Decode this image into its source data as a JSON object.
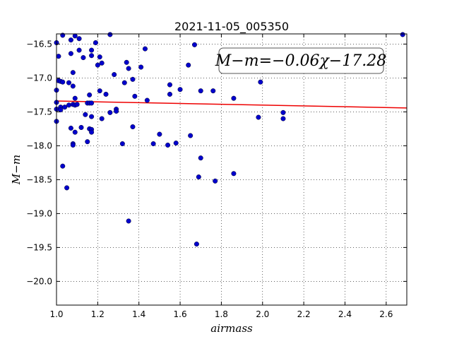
{
  "chart_data": {
    "type": "scatter",
    "title": "2021-11-05_005350",
    "xlabel": "airmass",
    "ylabel": "M−m",
    "xlim": [
      1.0,
      2.7
    ],
    "ylim": [
      -20.35,
      -16.35
    ],
    "y_inverted": true,
    "grid": true,
    "xticks": [
      1.0,
      1.2,
      1.4,
      1.6,
      1.8,
      2.0,
      2.2,
      2.4,
      2.6
    ],
    "xtick_labels": [
      "1.0",
      "1.2",
      "1.4",
      "1.6",
      "1.8",
      "2.0",
      "2.2",
      "2.4",
      "2.6"
    ],
    "yticks": [
      -16.5,
      -17.0,
      -17.5,
      -18.0,
      -18.5,
      -19.0,
      -19.5,
      -20.0
    ],
    "ytick_labels": [
      "−16.5",
      "−17.0",
      "−17.5",
      "−18.0",
      "−18.5",
      "−19.0",
      "−19.5",
      "−20.0"
    ],
    "annotation": "M−m=−0.06χ−17.28",
    "point_color": "#0000cc",
    "fit_color": "#ee0000",
    "series": [
      {
        "kind": "points",
        "x": [
          1.0,
          1.0,
          1.0,
          1.0,
          1.0,
          1.01,
          1.01,
          1.02,
          1.02,
          1.02,
          1.03,
          1.03,
          1.03,
          1.04,
          1.05,
          1.06,
          1.06,
          1.07,
          1.07,
          1.07,
          1.08,
          1.08,
          1.08,
          1.08,
          1.08,
          1.09,
          1.09,
          1.09,
          1.09,
          1.1,
          1.11,
          1.11,
          1.12,
          1.13,
          1.14,
          1.15,
          1.15,
          1.16,
          1.16,
          1.16,
          1.17,
          1.17,
          1.17,
          1.17,
          1.17,
          1.17,
          1.19,
          1.2,
          1.21,
          1.21,
          1.22,
          1.22,
          1.24,
          1.26,
          1.26,
          1.28,
          1.29,
          1.29,
          1.32,
          1.33,
          1.34,
          1.35,
          1.35,
          1.37,
          1.37,
          1.38,
          1.41,
          1.43,
          1.44,
          1.47,
          1.5,
          1.54,
          1.55,
          1.55,
          1.58,
          1.6,
          1.64,
          1.65,
          1.67,
          1.68,
          1.69,
          1.7,
          1.7,
          1.76,
          1.77,
          1.86,
          1.86,
          1.98,
          1.99,
          2.1,
          2.1,
          2.68
        ],
        "y": [
          -16.48,
          -17.18,
          -17.36,
          -17.46,
          -17.64,
          -16.68,
          -17.04,
          -17.05,
          -17.43,
          -17.47,
          -16.37,
          -17.06,
          -18.3,
          -17.43,
          -18.62,
          -17.07,
          -17.4,
          -17.74,
          -16.44,
          -16.64,
          -16.92,
          -17.12,
          -17.39,
          -17.97,
          -17.99,
          -16.38,
          -17.3,
          -17.4,
          -17.8,
          -17.39,
          -16.42,
          -16.59,
          -17.73,
          -16.7,
          -17.54,
          -17.37,
          -17.94,
          -17.75,
          -17.25,
          -17.37,
          -16.59,
          -16.67,
          -17.57,
          -17.76,
          -17.8,
          -17.37,
          -16.48,
          -16.81,
          -16.69,
          -17.19,
          -16.78,
          -17.6,
          -17.24,
          -17.51,
          -16.36,
          -16.95,
          -17.46,
          -17.49,
          -17.97,
          -17.07,
          -16.77,
          -16.86,
          -19.11,
          -17.72,
          -17.02,
          -17.27,
          -16.84,
          -16.57,
          -17.33,
          -17.97,
          -17.83,
          -17.99,
          -17.1,
          -17.24,
          -17.96,
          -17.17,
          -16.81,
          -17.85,
          -16.51,
          -19.45,
          -18.46,
          -18.18,
          -17.19,
          -17.19,
          -18.52,
          -17.3,
          -18.41,
          -17.58,
          -17.06,
          -17.51,
          -17.6,
          -16.36
        ]
      },
      {
        "kind": "fit_line",
        "x": [
          1.0,
          2.7
        ],
        "y": [
          -17.34,
          -17.442
        ]
      }
    ]
  }
}
